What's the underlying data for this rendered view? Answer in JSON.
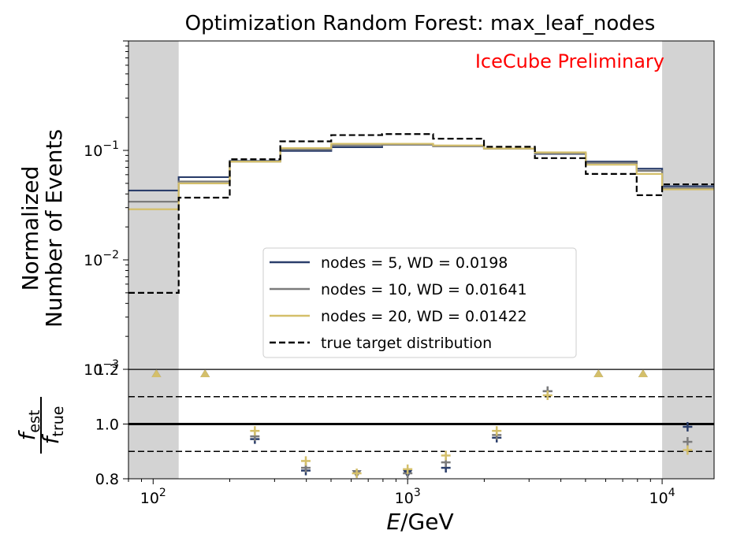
{
  "chart_data": [
    {
      "type": "line",
      "title": "Optimization Random Forest: max_leaf_nodes",
      "annotation": "IceCube Preliminary",
      "annotation_color": "#ff0000",
      "ylabel_line1": "Normalized",
      "ylabel_line2": "Number of Events",
      "yscale": "log",
      "xscale": "log",
      "xlim": [
        80,
        16000
      ],
      "ylim": [
        0.001,
        1
      ],
      "yticks": [
        {
          "base": "10",
          "exp": "−1",
          "value": 0.1
        },
        {
          "base": "10",
          "exp": "−2",
          "value": 0.01
        },
        {
          "base": "10",
          "exp": "−3",
          "value": 0.001
        }
      ],
      "shaded_regions": [
        [
          80,
          126
        ],
        [
          10000,
          16000
        ]
      ],
      "shade_color": "#d3d3d3",
      "bin_edges": [
        80,
        126,
        200,
        316,
        501,
        794,
        1259,
        1995,
        3162,
        5012,
        7943,
        10000,
        16000
      ],
      "series": [
        {
          "name": "nodes = 5, WD = 0.0198",
          "color": "#2b3e6b",
          "dash": "solid",
          "values": [
            0.043,
            0.057,
            0.08,
            0.099,
            0.107,
            0.113,
            0.11,
            0.104,
            0.093,
            0.079,
            0.068,
            0.047
          ]
        },
        {
          "name": "nodes = 10, WD = 0.01641",
          "color": "#7b7b7b",
          "dash": "solid",
          "values": [
            0.034,
            0.052,
            0.079,
            0.102,
            0.111,
            0.113,
            0.109,
            0.104,
            0.094,
            0.077,
            0.065,
            0.045
          ]
        },
        {
          "name": "nodes = 20, WD = 0.01422",
          "color": "#d4bf6a",
          "dash": "solid",
          "values": [
            0.029,
            0.05,
            0.079,
            0.105,
            0.115,
            0.115,
            0.111,
            0.104,
            0.096,
            0.074,
            0.061,
            0.044
          ]
        },
        {
          "name": "true target distribution",
          "color": "#000000",
          "dash": "dashed",
          "values": [
            0.005,
            0.037,
            0.083,
            0.121,
            0.138,
            0.141,
            0.128,
            0.108,
            0.085,
            0.061,
            0.039,
            0.049
          ]
        }
      ],
      "legend_position": "center-right"
    },
    {
      "type": "scatter",
      "ylabel_main": "f",
      "ylabel_top_sub": "est",
      "ylabel_bottom_sub": "true",
      "xlabel_italic": "E",
      "xlabel_rest": "/GeV",
      "xscale": "log",
      "xlim": [
        80,
        16000
      ],
      "ylim": [
        0.8,
        1.2
      ],
      "yticks": [
        "1.2",
        "1.0",
        "0.8"
      ],
      "xticks": [
        {
          "base": "10",
          "exp": "2",
          "value": 100
        },
        {
          "base": "10",
          "exp": "3",
          "value": 1000
        },
        {
          "base": "10",
          "exp": "4",
          "value": 10000
        }
      ],
      "reference_lines": [
        {
          "y": 1.2,
          "style": "solid"
        },
        {
          "y": 1.1,
          "style": "dashed"
        },
        {
          "y": 1.0,
          "style": "solid-thick"
        },
        {
          "y": 0.9,
          "style": "dashed"
        }
      ],
      "bin_centers": [
        103,
        160,
        251,
        398,
        631,
        1000,
        1413,
        2239,
        3548,
        5623,
        8414,
        12589
      ],
      "series": [
        {
          "name": "nodes = 5, WD = 0.0198",
          "color": "#2b3e6b",
          "values": [
            ">1.2",
            ">1.2",
            0.945,
            0.83,
            0.81,
            0.81,
            0.84,
            0.95,
            1.12,
            ">1.2",
            ">1.2",
            0.99
          ]
        },
        {
          "name": "nodes = 10, WD = 0.01641",
          "color": "#7b7b7b",
          "values": [
            ">1.2",
            ">1.2",
            0.955,
            0.84,
            0.81,
            0.82,
            0.86,
            0.96,
            1.12,
            ">1.2",
            ">1.2",
            0.935
          ]
        },
        {
          "name": "nodes = 20, WD = 0.01422",
          "color": "#d4bf6a",
          "values": [
            ">1.2",
            ">1.2",
            0.975,
            0.865,
            0.82,
            0.835,
            0.885,
            0.975,
            1.105,
            ">1.2",
            ">1.2",
            0.905
          ]
        }
      ]
    }
  ]
}
